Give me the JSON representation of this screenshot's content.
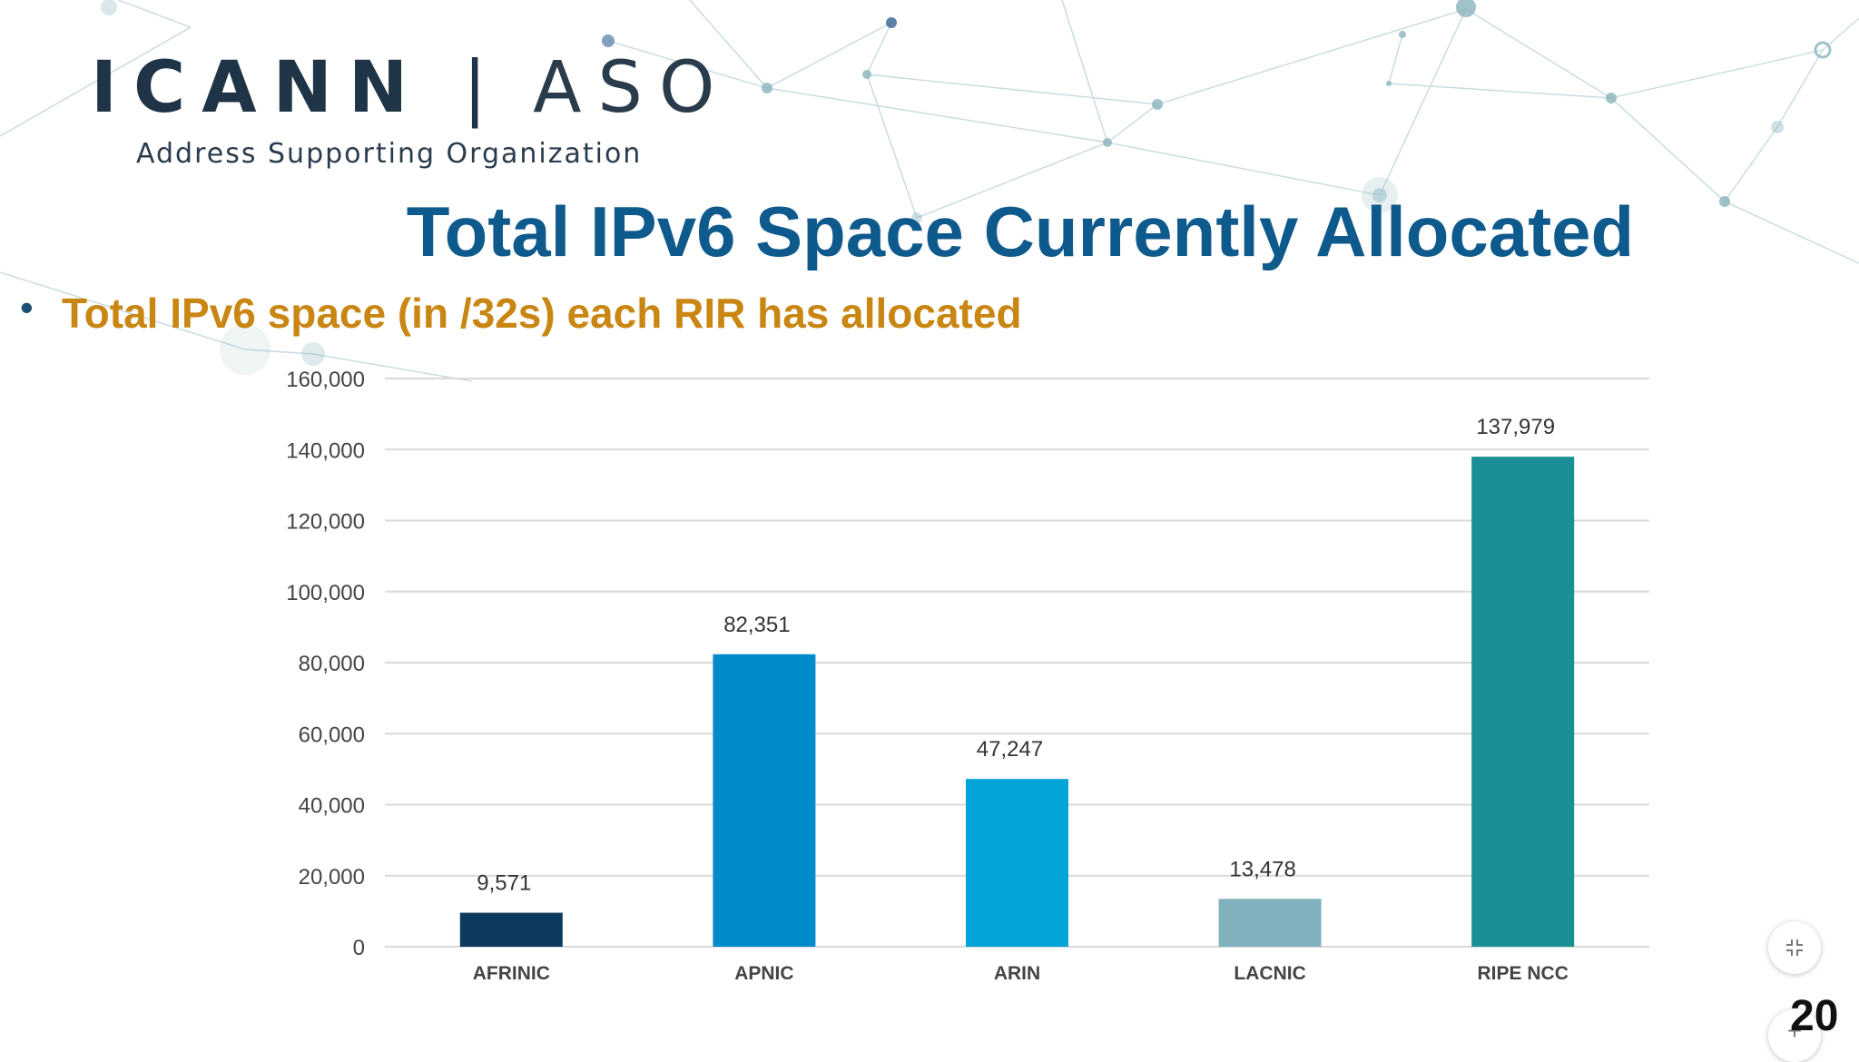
{
  "logo": {
    "main_bold": "ICANN",
    "separator": "|",
    "main_light": "ASO",
    "sub": "Address Supporting Organization"
  },
  "slide": {
    "title": "Total IPv6 Space Currently Allocated",
    "bullet": "Total IPv6 space (in /32s) each RIR has allocated",
    "page_number": "20"
  },
  "controls": {
    "collapse_icon": "collapse-icon",
    "zoom_icon": "plus-icon"
  },
  "chart_data": {
    "type": "bar",
    "title": "",
    "categories": [
      "AFRINIC",
      "APNIC",
      "ARIN",
      "LACNIC",
      "RIPE NCC"
    ],
    "values": [
      9571,
      82351,
      47247,
      13478,
      137979
    ],
    "value_labels": [
      "9,571",
      "82,351",
      "47,247",
      "13,478",
      "137,979"
    ],
    "colors": [
      "#0c3a5c",
      "#028bca",
      "#03a4d8",
      "#80b1bd",
      "#1a9096"
    ],
    "xlabel": "",
    "ylabel": "",
    "ylim": [
      0,
      160000
    ],
    "yticks": [
      0,
      20000,
      40000,
      60000,
      80000,
      100000,
      120000,
      140000,
      160000
    ],
    "ytick_labels": [
      "0",
      "20,000",
      "40,000",
      "60,000",
      "80,000",
      "100,000",
      "120,000",
      "140,000",
      "160,000"
    ],
    "grid": true,
    "legend": "none"
  }
}
